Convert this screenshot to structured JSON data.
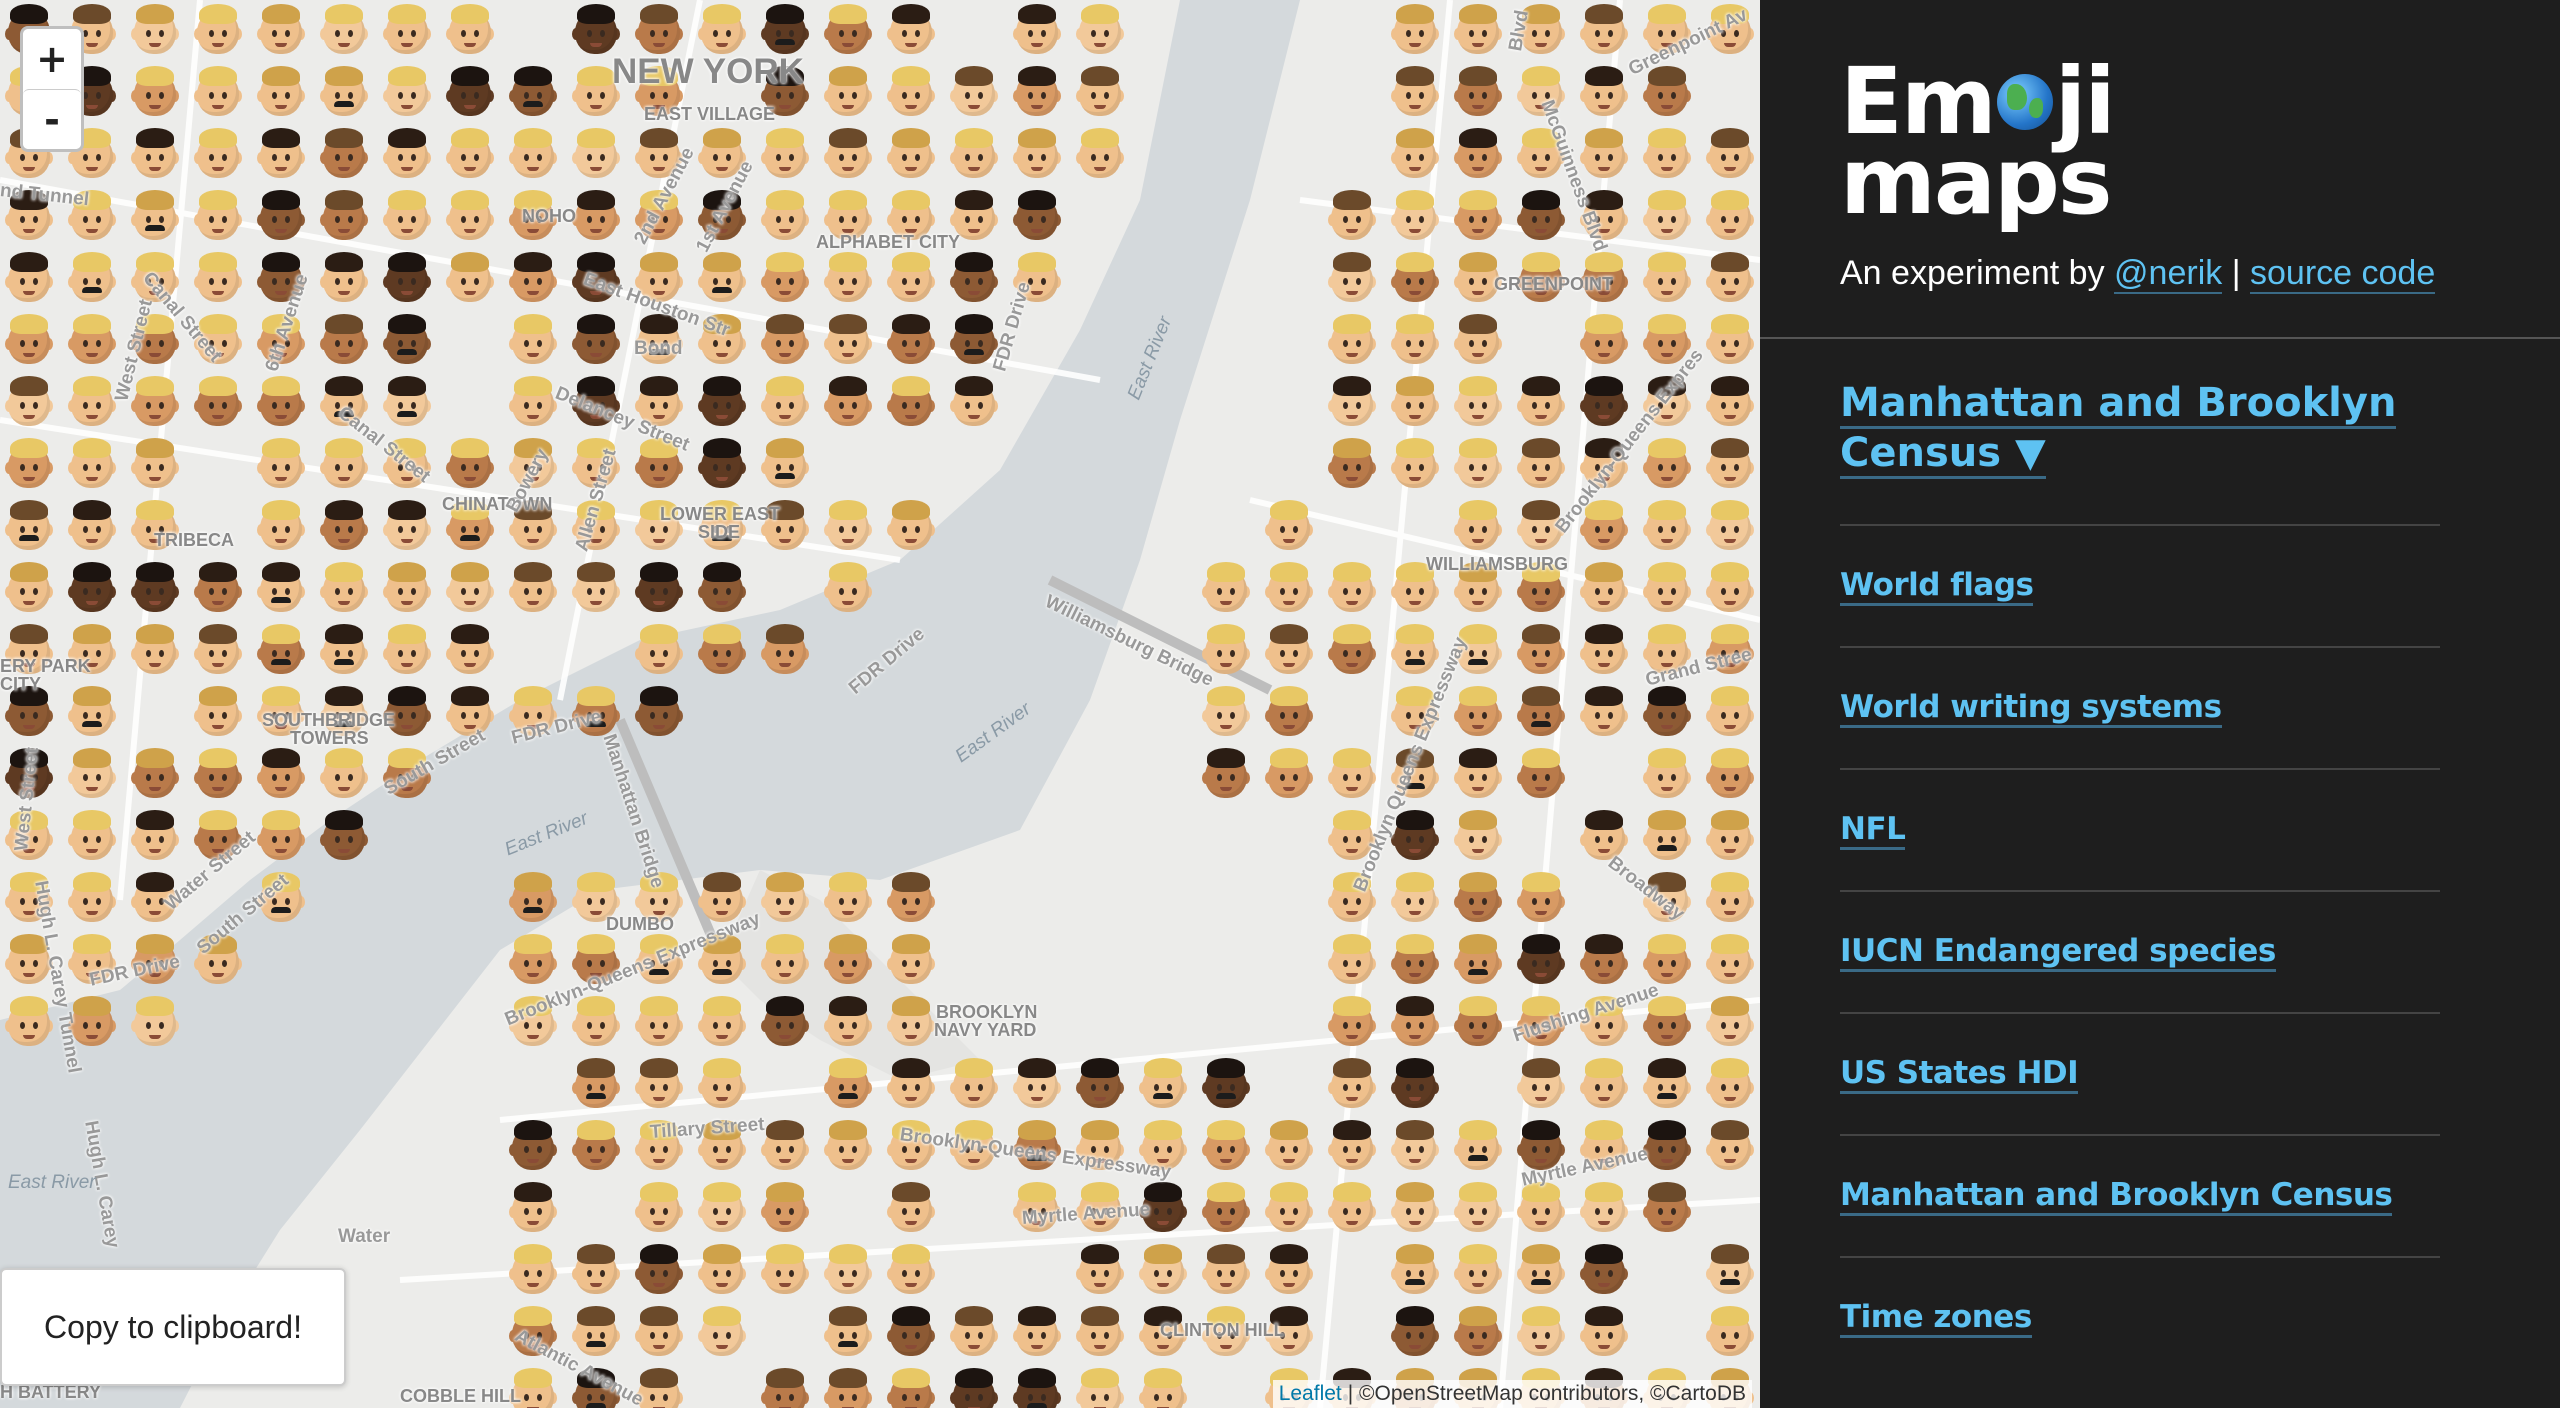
{
  "map": {
    "zoom_in": "+",
    "zoom_out": "-",
    "copy_button": "Copy to clipboard!",
    "attribution_link": "Leaflet",
    "attribution_text": "| ©OpenStreetMap contributors, ©CartoDB",
    "labels": {
      "new_york": "NEW YORK",
      "east_village": "EAST VILLAGE",
      "noho": "NOHO",
      "alphabet_city": "ALPHABET CITY",
      "chinatown": "CHINATOWN",
      "lower_east_side_1": "LOWER EAST",
      "lower_east_side_2": "SIDE",
      "tribeca": "TRIBECA",
      "southbridge_1": "SOUTHBRIDGE",
      "southbridge_2": "TOWERS",
      "battery_park_1": "ERY PARK",
      "battery_park_2": "CITY",
      "greenpoint": "GREENPOINT",
      "williamsburg": "WILLIAMSBURG",
      "dumbo": "DUMBO",
      "navy_yard_1": "BROOKLYN",
      "navy_yard_2": "NAVY YARD",
      "clinton_hill": "CLINTON HILL",
      "cobble_hill": "COBBLE HILL",
      "battery": "H BATTERY"
    },
    "streets": {
      "tunnel": "nd Tunnel",
      "canal1": "Canal Street",
      "sixth": "6th Avenue",
      "west": "West Street",
      "second": "2nd Avenue",
      "first": "1st Avenue",
      "houston": "East Houston Str",
      "bond": "Bond",
      "delancey": "Delancey Street",
      "canal2": "Canal Street",
      "bowery": "Bowery",
      "allen": "Allen Street",
      "fdr1": "FDR Drive",
      "fdr2": "FDR Drive",
      "fdr3": "FDR Drive",
      "fdr4": "FDR Drive",
      "south": "South Street",
      "manhattan_bridge": "Manhattan Bridge",
      "williamsburg_bridge": "Williamsburg Bridge",
      "west2": "West Street",
      "water": "Water Street",
      "south2": "South Street",
      "hugh": "Hugh L. Carey Tunnel",
      "hugh2": "Hugh L. Carey",
      "bqe1": "Brooklyn-Queens Expressway",
      "bqe2": "Brooklyn-Queens Expressway",
      "bqe3": "Brooklyn Queens Expressway",
      "bqe4": "Brooklyn-Queens Expres",
      "tillary": "Tillary Street",
      "myrtle1": "Myrtle Avenue",
      "myrtle2": "Myrtle Avenue",
      "atlantic": "Atlantic Avenue",
      "water2": "Water",
      "flushing": "Flushing Avenue",
      "broadway": "Broadway",
      "grand": "Grand Stree",
      "mcguinness": "McGuinness Blvd",
      "greenpoint_ave": "Greenpoint Av",
      "blvd": "Blvd"
    },
    "water": {
      "east_river1": "East River",
      "east_river2": "East River",
      "east_river3": "East River",
      "east_river4": "East River"
    }
  },
  "sidebar": {
    "title_line1_a": "Em",
    "title_line1_b": "ji",
    "title_line2": "maps",
    "tagline_prefix": "An experiment by",
    "author_link": "@nerik",
    "separator": "|",
    "source_link": "source code",
    "current_map": "Manhattan and Brooklyn Census ▼",
    "nav": [
      "World flags",
      "World writing systems",
      "NFL",
      "IUCN Endangered species",
      "US States HDI",
      "Manhattan and Brooklyn Census",
      "Time zones"
    ]
  },
  "colors": {
    "link": "#5ec2f2",
    "sidebar_bg": "#1e1e1e",
    "map_land": "#e8e8e6",
    "map_water": "#d4d9dc"
  }
}
